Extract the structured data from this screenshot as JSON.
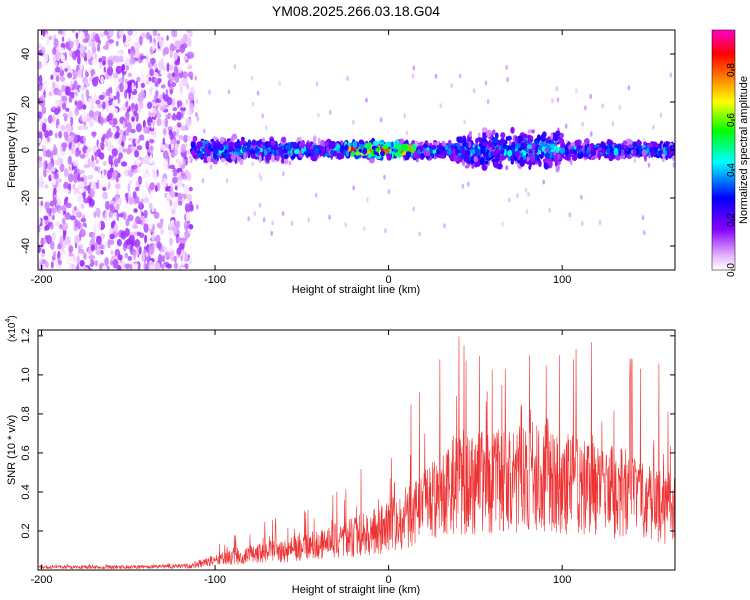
{
  "figure_title": "YM08.2025.266.03.18.G04",
  "chart_data": [
    {
      "type": "heatmap",
      "title": "YM08.2025.266.03.18.G04",
      "xlabel": "Height of straight line (km)",
      "ylabel": "Frequency (Hz)",
      "xlim": [
        -202,
        165
      ],
      "ylim": [
        -50,
        50
      ],
      "xticks": [
        -200,
        -100,
        0,
        100
      ],
      "xtick_labels": [
        "-200",
        "-100",
        "0",
        "100"
      ],
      "yticks": [
        -40,
        -20,
        0,
        20,
        40
      ],
      "ytick_labels": [
        "-40",
        "-20",
        "0",
        "20",
        "40"
      ],
      "colorbar": {
        "label": "Normalized spectral amplitude",
        "range": [
          0,
          0.96
        ],
        "ticks": [
          0.0,
          0.2,
          0.4,
          0.6,
          0.8
        ],
        "tick_labels": [
          "0.0",
          "0.2",
          "0.4",
          "0.6",
          "0.8"
        ],
        "colors": [
          "#ffffff",
          "#e6b3ff",
          "#8800ff",
          "#0000ff",
          "#00ffff",
          "#00ff00",
          "#ffff00",
          "#ff8000",
          "#ff0000",
          "#ff00cc"
        ]
      },
      "regions": [
        {
          "name": "broadband noise",
          "x_range": [
            -202,
            -113
          ],
          "f_range": [
            -50,
            50
          ],
          "peak_amplitude": 0.15
        },
        {
          "name": "spectral line",
          "x_range": [
            -113,
            165
          ],
          "f_center": 0,
          "f_halfwidth": 8,
          "peak_amplitude": 0.92,
          "peak_x": [
            -25,
            15
          ]
        }
      ]
    },
    {
      "type": "line",
      "xlabel": "Height of straight line (km)",
      "ylabel": "SNR (10 * v/v)",
      "scale_label": "(x10",
      "scale_exponent": "4",
      "scale_close": ")",
      "xlim": [
        -202,
        165
      ],
      "ylim": [
        0,
        1.23
      ],
      "xticks": [
        -200,
        -100,
        0,
        100
      ],
      "xtick_labels": [
        "-200",
        "-100",
        "0",
        "100"
      ],
      "yticks": [
        0.2,
        0.4,
        0.6,
        0.8,
        1.0,
        1.2
      ],
      "ytick_labels": [
        "0.2",
        "0.4",
        "0.6",
        "0.8",
        "1.0",
        "1.2"
      ],
      "series": [
        {
          "name": "SNR",
          "color": "#ee3333",
          "envelope_x": [
            -202,
            -150,
            -115,
            -100,
            -80,
            -60,
            -40,
            -20,
            0,
            20,
            40,
            60,
            80,
            100,
            120,
            140,
            160,
            165
          ],
          "envelope_max": [
            0.03,
            0.03,
            0.04,
            0.12,
            0.22,
            0.28,
            0.32,
            0.48,
            0.66,
            0.95,
            1.22,
            1.02,
            1.1,
            1.1,
            1.18,
            1.08,
            1.05,
            0.75
          ],
          "envelope_typ": [
            0.015,
            0.015,
            0.02,
            0.05,
            0.08,
            0.1,
            0.13,
            0.17,
            0.22,
            0.32,
            0.45,
            0.45,
            0.48,
            0.45,
            0.42,
            0.38,
            0.32,
            0.3
          ]
        }
      ]
    }
  ]
}
